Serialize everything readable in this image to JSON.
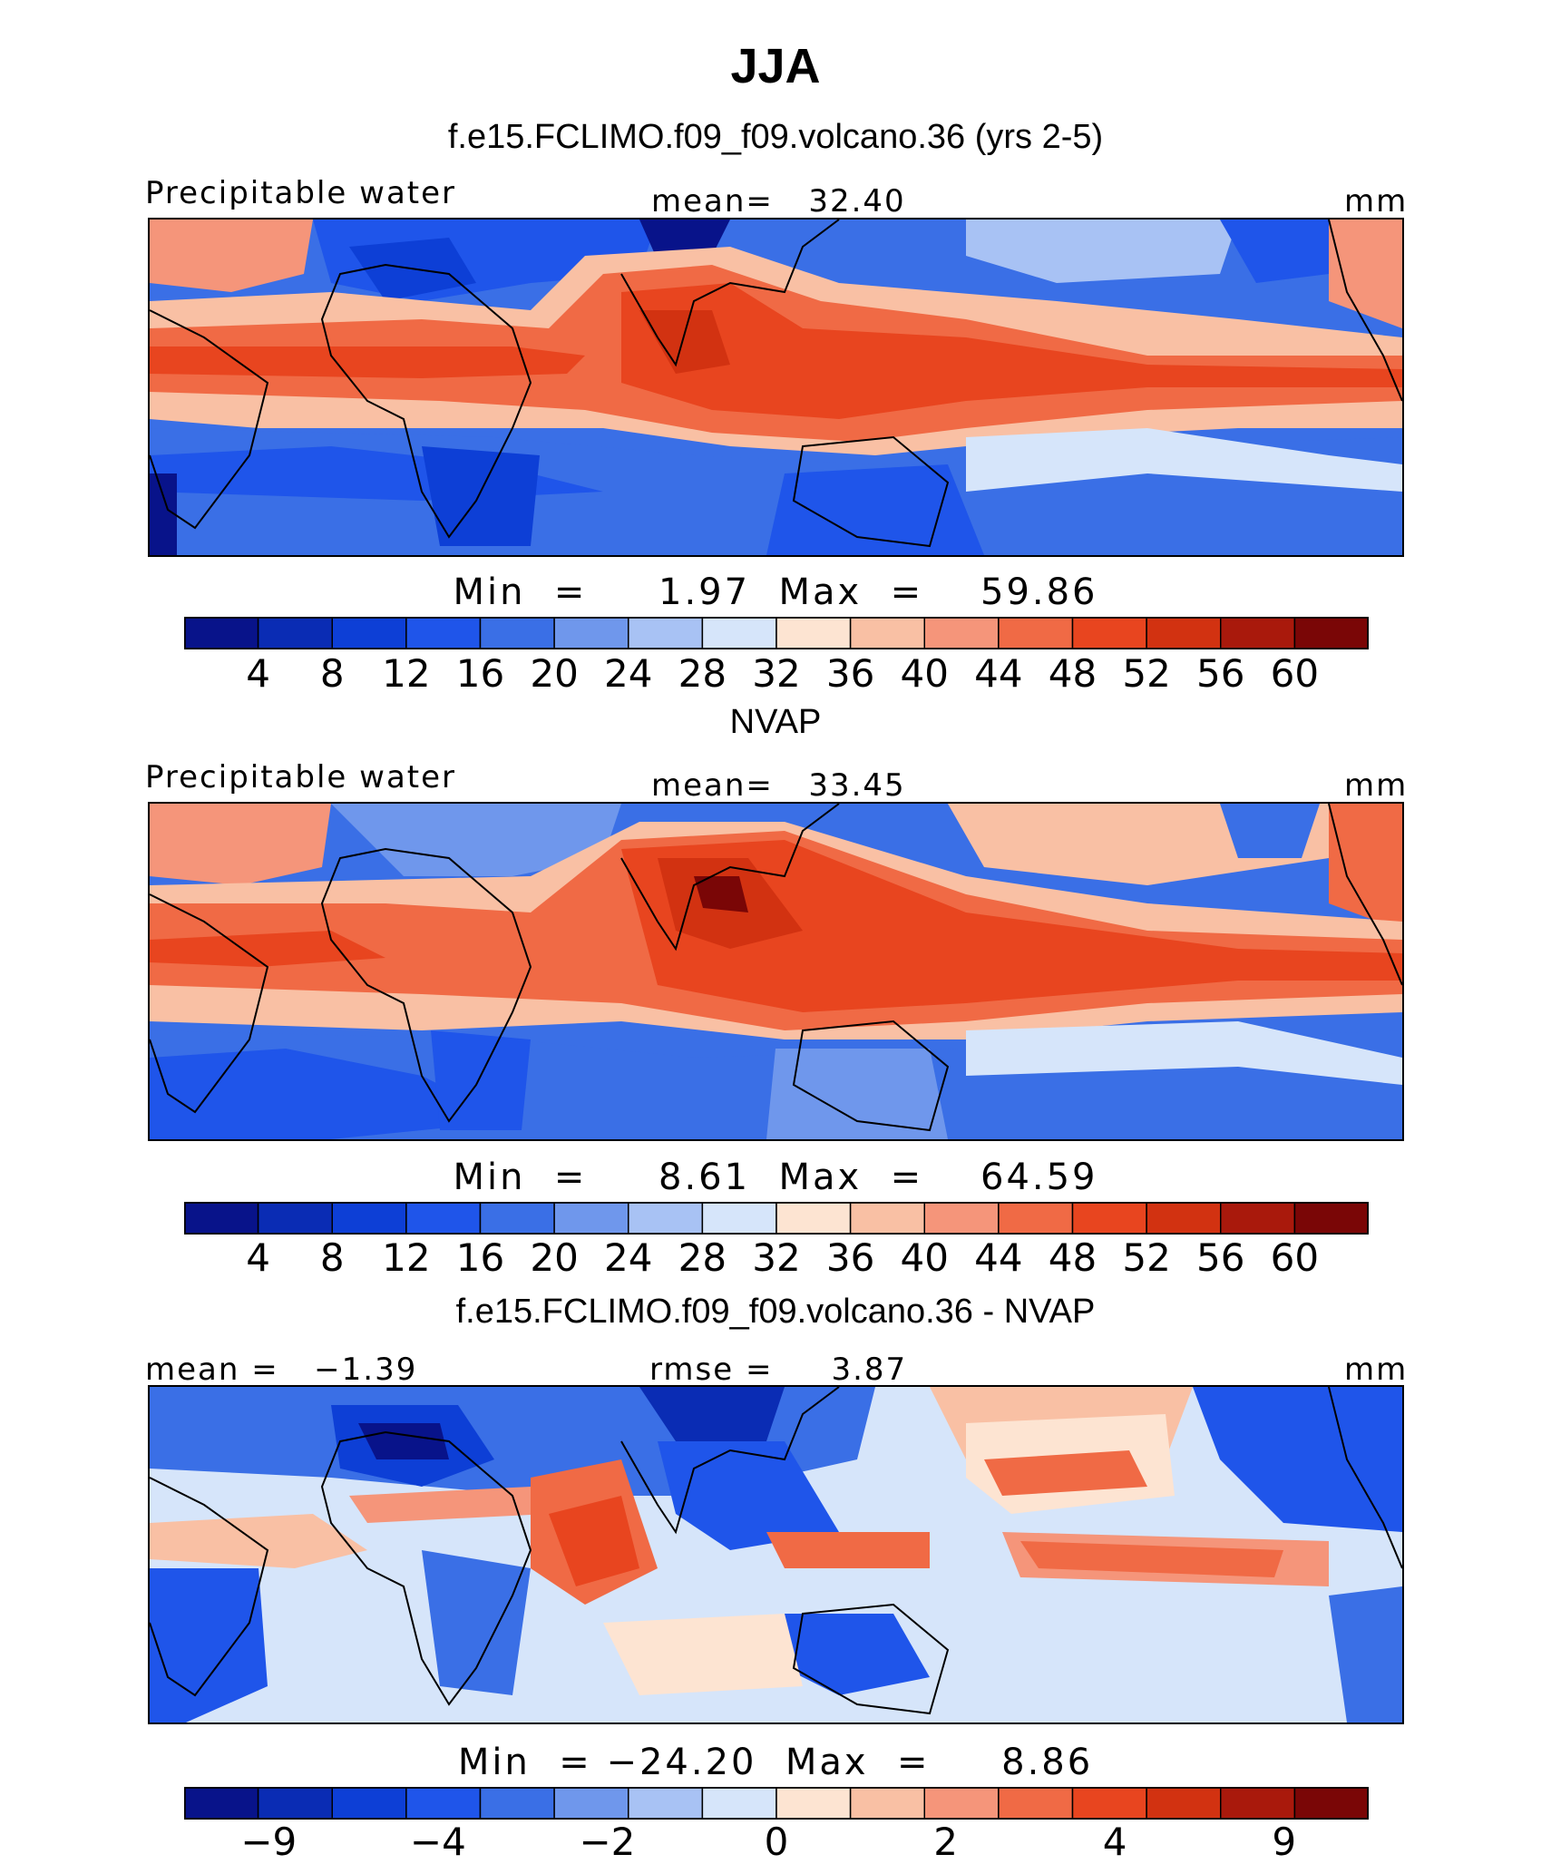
{
  "figure": {
    "title": "JJA"
  },
  "panels": [
    {
      "title": "f.e15.FCLIMO.f09_f09.volcano.36 (yrs 2-5)",
      "left_label": "Precipitable water",
      "center_label": "mean=   32.40",
      "right_label": "mm",
      "min_max": "Min  =     1.97  Max  =    59.86"
    },
    {
      "title": "NVAP",
      "left_label": "Precipitable water",
      "center_label": "mean=   33.45",
      "right_label": "mm",
      "min_max": "Min  =     8.61  Max  =    64.59"
    },
    {
      "title": "f.e15.FCLIMO.f09_f09.volcano.36 - NVAP",
      "left_label": "mean =   −1.39",
      "center_label": "rmse =     3.87",
      "right_label": "mm",
      "min_max": "Min  = −24.20  Max  =     8.86"
    }
  ],
  "colors": {
    "palette": [
      "#08138a",
      "#0a2cb4",
      "#0d3fd6",
      "#1f55ea",
      "#3a6fe6",
      "#6f97ec",
      "#a8c2f4",
      "#d6e5fa",
      "#fde4d2",
      "#f9c0a4",
      "#f5957a",
      "#f06a45",
      "#e8451f",
      "#d23211",
      "#a9190c",
      "#7a0606"
    ]
  },
  "chart_data": [
    {
      "type": "heatmap",
      "title": "f.e15.FCLIMO.f09_f09.volcano.36 (yrs 2-5)",
      "variable": "Precipitable water",
      "units": "mm",
      "mean": 32.4,
      "min": 1.97,
      "max": 59.86,
      "colorbar_levels": [
        "4",
        "8",
        "12",
        "16",
        "20",
        "24",
        "28",
        "32",
        "36",
        "40",
        "44",
        "48",
        "52",
        "56",
        "60"
      ]
    },
    {
      "type": "heatmap",
      "title": "NVAP",
      "variable": "Precipitable water",
      "units": "mm",
      "mean": 33.45,
      "min": 8.61,
      "max": 64.59,
      "colorbar_levels": [
        "4",
        "8",
        "12",
        "16",
        "20",
        "24",
        "28",
        "32",
        "36",
        "40",
        "44",
        "48",
        "52",
        "56",
        "60"
      ]
    },
    {
      "type": "heatmap",
      "title": "f.e15.FCLIMO.f09_f09.volcano.36 - NVAP",
      "units": "mm",
      "mean": -1.39,
      "rmse": 3.87,
      "min": -24.2,
      "max": 8.86,
      "colorbar_levels": [
        "−9",
        "",
        "−4",
        "",
        "−2",
        "",
        "0",
        "",
        "2",
        "",
        "4",
        "",
        "9"
      ]
    }
  ]
}
